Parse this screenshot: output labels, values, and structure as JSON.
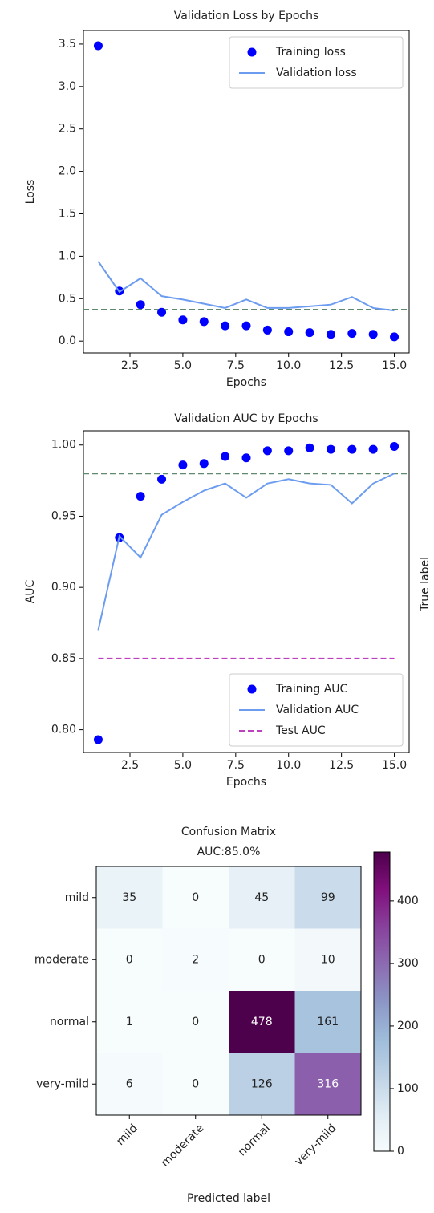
{
  "chart_data": [
    {
      "type": "line",
      "title": "Validation Loss by Epochs",
      "x_label": "Epochs",
      "y_label": "Loss",
      "x": [
        1,
        2,
        3,
        4,
        5,
        6,
        7,
        8,
        9,
        10,
        11,
        12,
        13,
        14,
        15
      ],
      "series": [
        {
          "name": "Training loss",
          "color": "#0000ff",
          "marker": "dot",
          "values": [
            3.48,
            0.59,
            0.43,
            0.34,
            0.25,
            0.23,
            0.18,
            0.18,
            0.13,
            0.11,
            0.1,
            0.08,
            0.09,
            0.08,
            0.05
          ]
        },
        {
          "name": "Validation loss",
          "color": "#6c9cf0",
          "marker": "line",
          "values": [
            0.94,
            0.58,
            0.74,
            0.53,
            0.49,
            0.44,
            0.39,
            0.49,
            0.39,
            0.39,
            0.41,
            0.43,
            0.52,
            0.39,
            0.36
          ]
        }
      ],
      "hlines": [
        {
          "value": 0.37,
          "color": "#5f8a6f"
        }
      ],
      "xlim": [
        0.3,
        15.7
      ],
      "xticks": [
        {
          "value": 2.5,
          "label": "2.5"
        },
        {
          "value": 5,
          "label": "5.0"
        },
        {
          "value": 7.5,
          "label": "7.5"
        },
        {
          "value": 10,
          "label": "10.0"
        },
        {
          "value": 12.5,
          "label": "12.5"
        },
        {
          "value": 15,
          "label": "15.0"
        }
      ],
      "ylim": [
        -0.14,
        3.66
      ],
      "yticks": [
        {
          "value": 0,
          "label": "0.0"
        },
        {
          "value": 0.5,
          "label": "0.5"
        },
        {
          "value": 1,
          "label": "1.0"
        },
        {
          "value": 1.5,
          "label": "1.5"
        },
        {
          "value": 2,
          "label": "2.0"
        },
        {
          "value": 2.5,
          "label": "2.5"
        },
        {
          "value": 3,
          "label": "3.0"
        },
        {
          "value": 3.5,
          "label": "3.5"
        }
      ],
      "legend": "upper-right"
    },
    {
      "type": "line",
      "title": "Validation AUC by Epochs",
      "x_label": "Epochs",
      "y_label": "AUC",
      "x": [
        1,
        2,
        3,
        4,
        5,
        6,
        7,
        8,
        9,
        10,
        11,
        12,
        13,
        14,
        15
      ],
      "series": [
        {
          "name": "Training AUC",
          "color": "#0000ff",
          "marker": "dot",
          "values": [
            0.793,
            0.935,
            0.964,
            0.976,
            0.986,
            0.987,
            0.992,
            0.991,
            0.996,
            0.996,
            0.998,
            0.997,
            0.997,
            0.997,
            0.999
          ]
        },
        {
          "name": "Validation AUC",
          "color": "#6c9cf0",
          "marker": "line",
          "values": [
            0.87,
            0.936,
            0.921,
            0.951,
            0.96,
            0.968,
            0.973,
            0.963,
            0.973,
            0.976,
            0.973,
            0.972,
            0.959,
            0.973,
            0.98
          ]
        },
        {
          "name": "Test AUC",
          "color": "#bf40bf",
          "marker": "dashed",
          "values": [
            0.85,
            0.85,
            0.85,
            0.85,
            0.85,
            0.85,
            0.85,
            0.85,
            0.85,
            0.85,
            0.85,
            0.85,
            0.85,
            0.85,
            0.85
          ]
        }
      ],
      "hlines": [
        {
          "value": 0.98,
          "color": "#5f8a6f"
        }
      ],
      "xlim": [
        0.3,
        15.7
      ],
      "xticks": [
        {
          "value": 2.5,
          "label": "2.5"
        },
        {
          "value": 5,
          "label": "5.0"
        },
        {
          "value": 7.5,
          "label": "7.5"
        },
        {
          "value": 10,
          "label": "10.0"
        },
        {
          "value": 12.5,
          "label": "12.5"
        },
        {
          "value": 15,
          "label": "15.0"
        }
      ],
      "ylim": [
        0.784,
        1.01
      ],
      "yticks": [
        {
          "value": 0.8,
          "label": "0.80"
        },
        {
          "value": 0.85,
          "label": "0.85"
        },
        {
          "value": 0.9,
          "label": "0.90"
        },
        {
          "value": 0.95,
          "label": "0.95"
        },
        {
          "value": 1,
          "label": "1.00"
        }
      ],
      "legend": "lower-right"
    },
    {
      "type": "heatmap",
      "title": "Confusion Matrix",
      "subtitle": "AUC:85.0%",
      "x_label": "Predicted label",
      "y_label": "True label",
      "categories": [
        "mild",
        "moderate",
        "normal",
        "very-mild"
      ],
      "matrix": [
        [
          35,
          0,
          45,
          99
        ],
        [
          0,
          2,
          0,
          10
        ],
        [
          1,
          0,
          478,
          161
        ],
        [
          6,
          0,
          126,
          316
        ]
      ],
      "colormap": "BuPu",
      "clim": [
        0,
        478
      ],
      "colorbar_ticks": [
        0,
        100,
        200,
        300,
        400
      ]
    }
  ]
}
